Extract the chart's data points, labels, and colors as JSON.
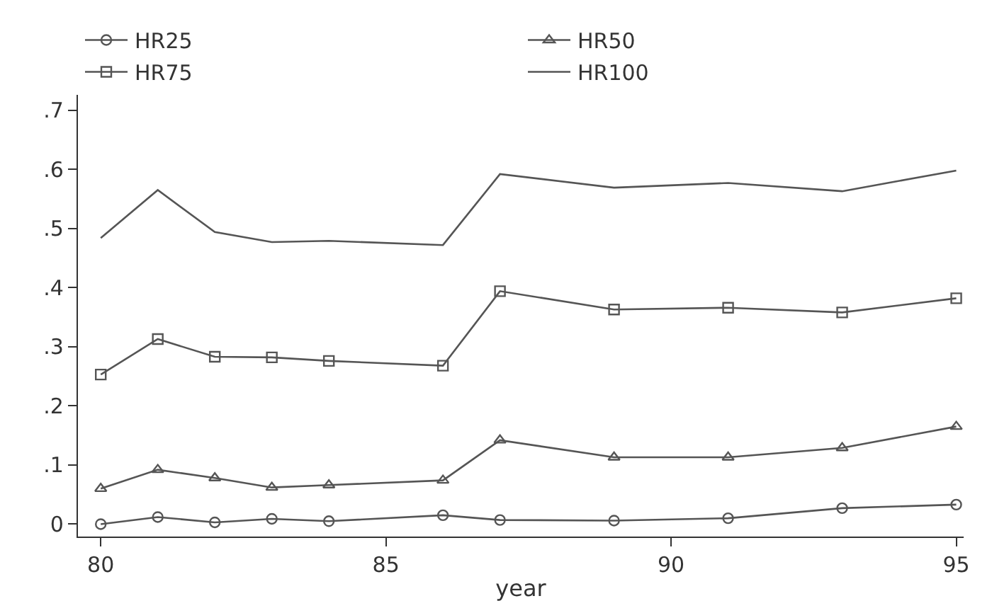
{
  "chart_data": {
    "type": "line",
    "xlabel": "year",
    "x": [
      80,
      81,
      82,
      83,
      84,
      86,
      87,
      89,
      91,
      93,
      95
    ],
    "series": [
      {
        "name": "HR25",
        "color": "#555555",
        "marker": "circle",
        "values": [
          0.0,
          0.012,
          0.003,
          0.009,
          0.005,
          0.015,
          0.007,
          0.006,
          0.01,
          0.027,
          0.033
        ]
      },
      {
        "name": "HR50",
        "color": "#555555",
        "marker": "triangle",
        "values": [
          0.06,
          0.092,
          0.078,
          0.062,
          0.066,
          0.074,
          0.142,
          0.113,
          0.113,
          0.129,
          0.165
        ]
      },
      {
        "name": "HR75",
        "color": "#555555",
        "marker": "square",
        "values": [
          0.253,
          0.313,
          0.283,
          0.282,
          0.276,
          0.268,
          0.394,
          0.363,
          0.366,
          0.358,
          0.382
        ]
      },
      {
        "name": "HR100",
        "color": "#555555",
        "marker": "none",
        "values": [
          0.484,
          0.565,
          0.494,
          0.477,
          0.479,
          0.472,
          0.592,
          0.569,
          0.577,
          0.563,
          0.598
        ]
      }
    ],
    "xlim": [
      79.6,
      95.13
    ],
    "xticks": [
      80,
      85,
      90,
      95
    ],
    "ylim": [
      -0.021,
      0.726
    ],
    "yticks": [
      {
        "value": 0,
        "label": "0"
      },
      {
        "value": 0.1,
        "label": ".1"
      },
      {
        "value": 0.2,
        "label": ".2"
      },
      {
        "value": 0.3,
        "label": ".3"
      },
      {
        "value": 0.4,
        "label": ".4"
      },
      {
        "value": 0.5,
        "label": ".5"
      },
      {
        "value": 0.6,
        "label": ".6"
      },
      {
        "value": 0.7,
        "label": ".7"
      }
    ],
    "legend": "top left",
    "line_style": "solid"
  }
}
